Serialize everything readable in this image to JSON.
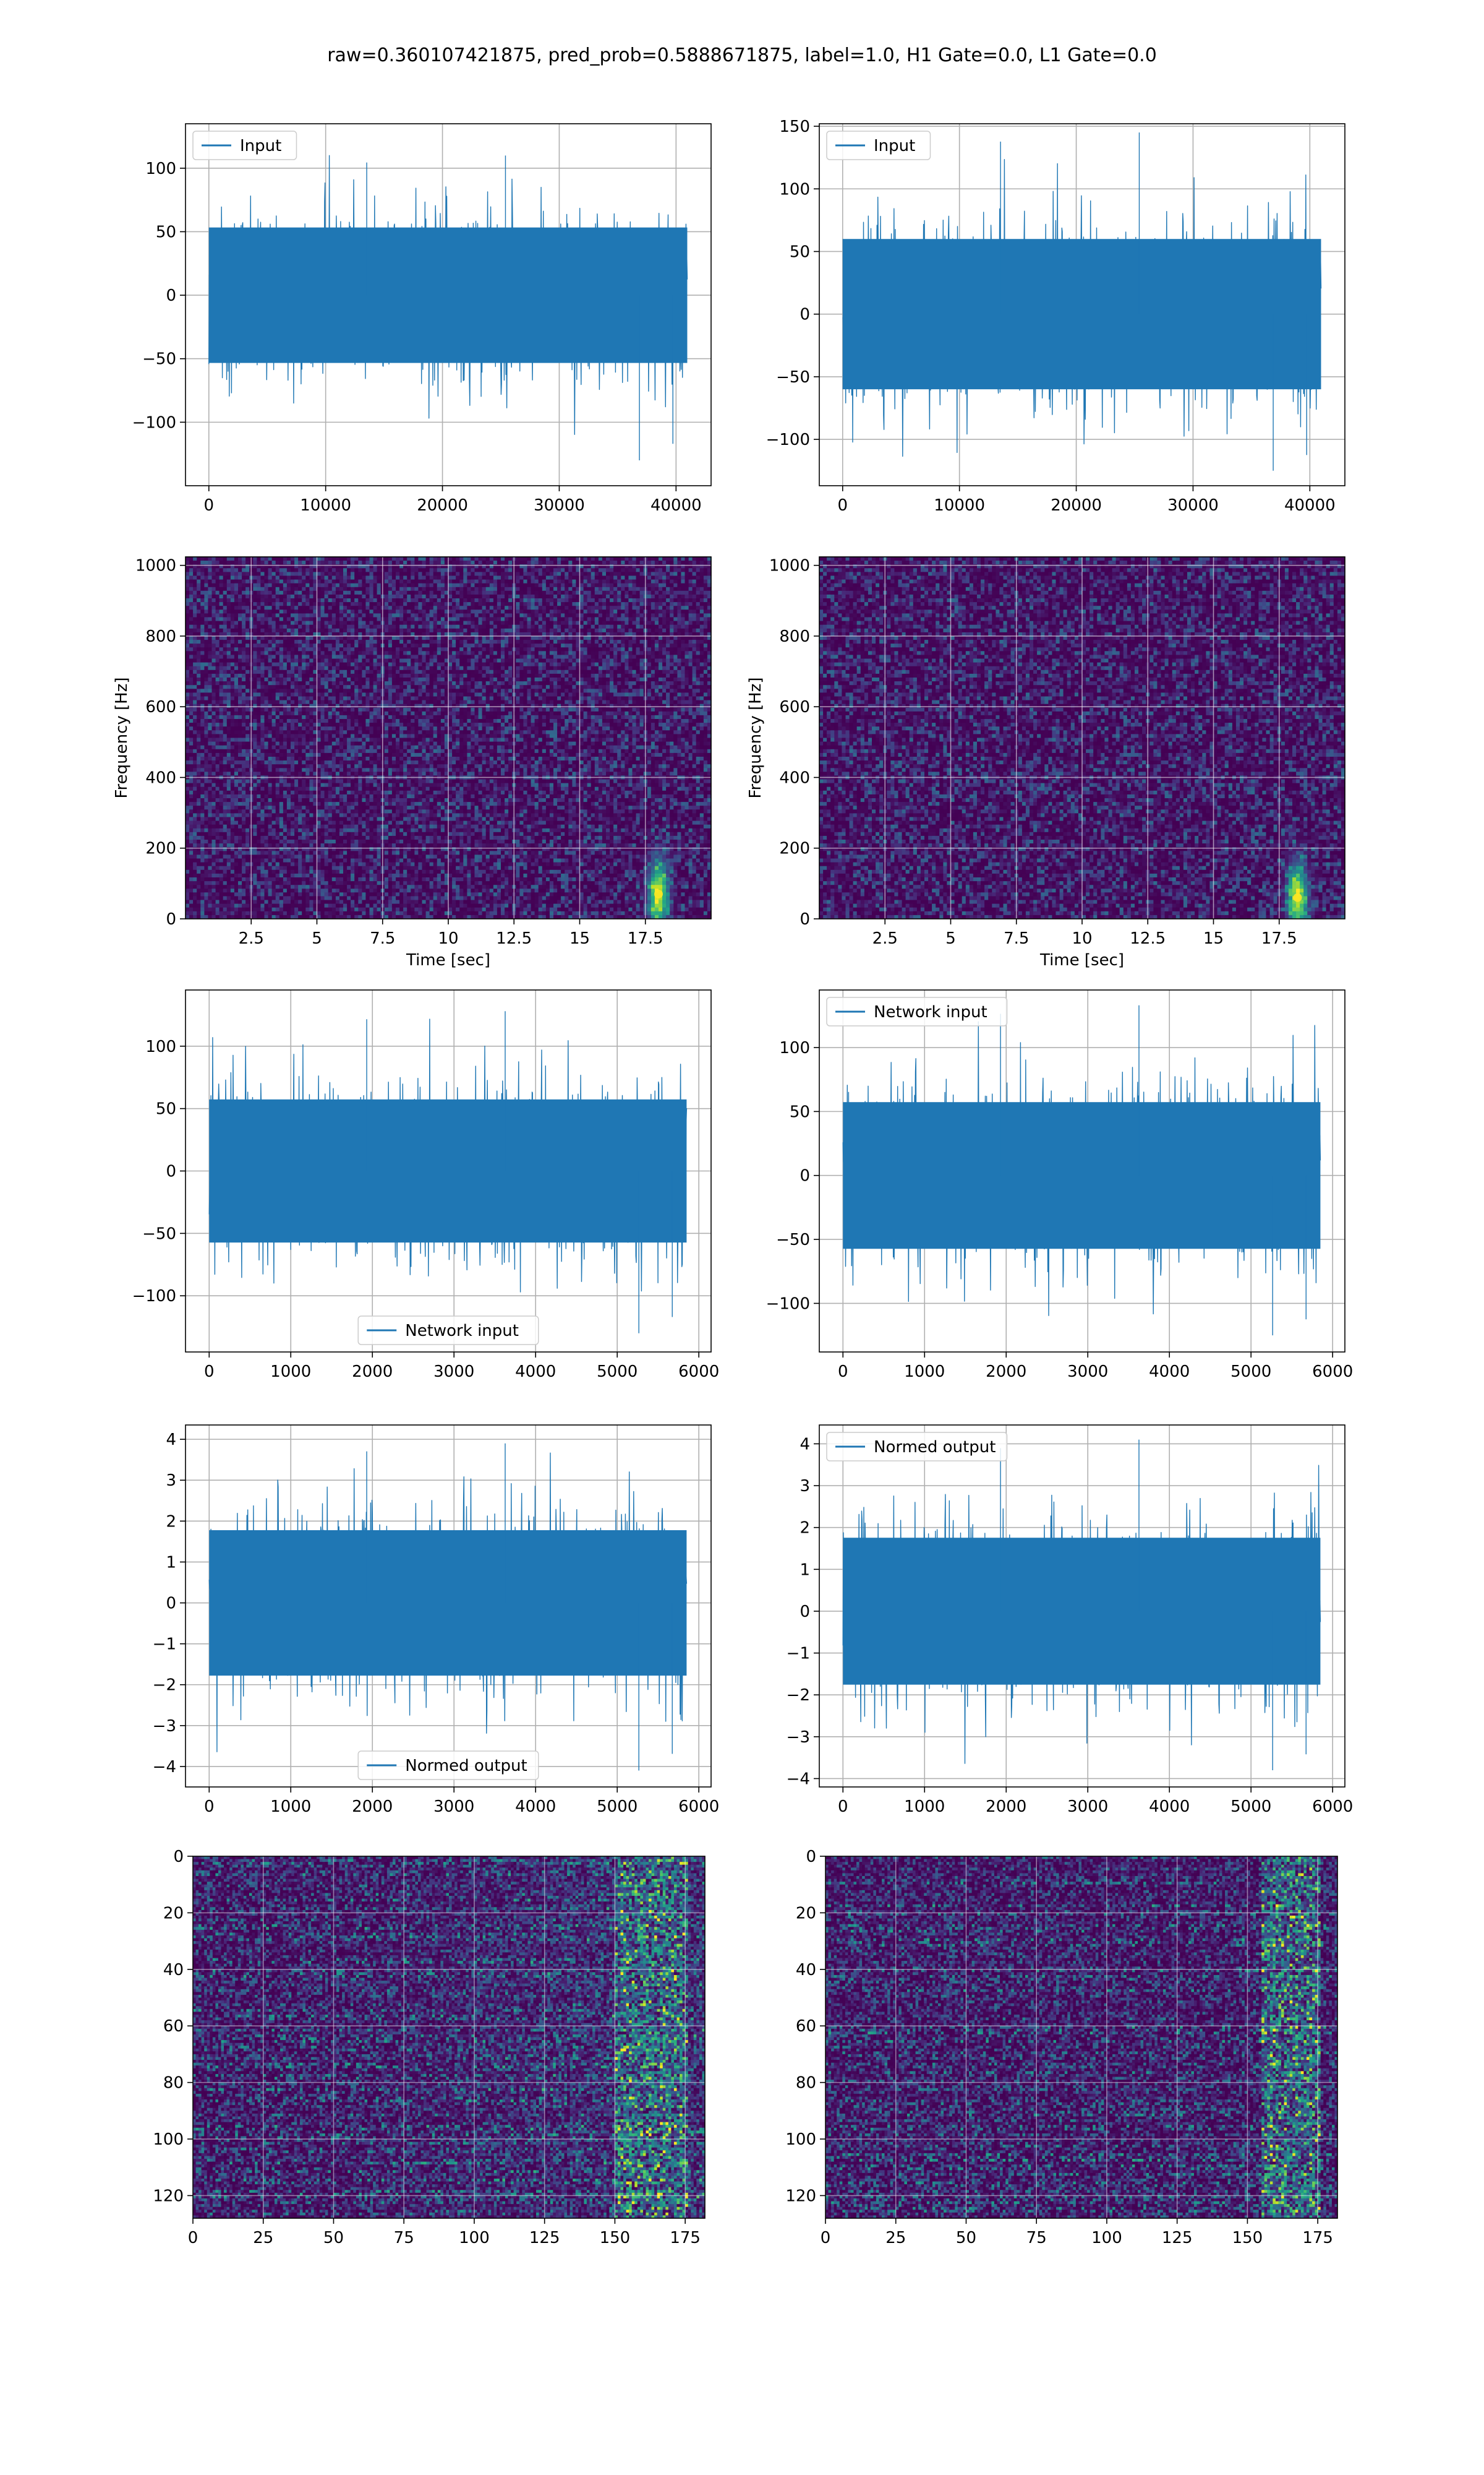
{
  "figure": {
    "title": "raw=0.360107421875, pred_prob=0.5888671875, label=1.0, H1 Gate=0.0, L1 Gate=0.0"
  },
  "colors": {
    "line": "#1f77b4",
    "viridis_low": "#440154",
    "viridis_high": "#fde725",
    "grid": "#b0b0b0"
  },
  "chart_data": [
    {
      "id": "input-h1",
      "type": "line",
      "title": "",
      "xlabel": "",
      "ylabel": "",
      "series": [
        {
          "name": "Input",
          "x_range": [
            0,
            40960
          ],
          "amplitude_envelope": [
            -130,
            110
          ]
        }
      ],
      "xlim": [
        -2000,
        43000
      ],
      "ylim": [
        -150,
        135
      ],
      "xticks": [
        0,
        10000,
        20000,
        30000,
        40000
      ],
      "yticks": [
        -100,
        -50,
        0,
        50,
        100
      ],
      "legend": "upper left",
      "grid": true
    },
    {
      "id": "input-l1",
      "type": "line",
      "title": "",
      "xlabel": "",
      "ylabel": "",
      "series": [
        {
          "name": "Input",
          "x_range": [
            0,
            40960
          ],
          "amplitude_envelope": [
            -125,
            145
          ]
        }
      ],
      "xlim": [
        -2000,
        43000
      ],
      "ylim": [
        -137,
        152
      ],
      "xticks": [
        0,
        10000,
        20000,
        30000,
        40000
      ],
      "yticks": [
        -100,
        -50,
        0,
        50,
        100,
        150
      ],
      "legend": "upper left",
      "grid": true
    },
    {
      "id": "spectrogram-h1",
      "type": "heatmap",
      "title": "",
      "xlabel": "Time [sec]",
      "ylabel": "Frequency [Hz]",
      "xlim": [
        0,
        20
      ],
      "ylim": [
        0,
        1024
      ],
      "xticks": [
        2.5,
        5.0,
        7.5,
        10.0,
        12.5,
        15.0,
        17.5
      ],
      "yticks": [
        0,
        200,
        400,
        600,
        800,
        1000
      ],
      "hotspot": {
        "x": 18.0,
        "y": 70
      },
      "colormap": "viridis",
      "grid": true
    },
    {
      "id": "spectrogram-l1",
      "type": "heatmap",
      "title": "",
      "xlabel": "Time [sec]",
      "ylabel": "Frequency [Hz]",
      "xlim": [
        0,
        20
      ],
      "ylim": [
        0,
        1024
      ],
      "xticks": [
        2.5,
        5.0,
        7.5,
        10.0,
        12.5,
        15.0,
        17.5
      ],
      "yticks": [
        0,
        200,
        400,
        600,
        800,
        1000
      ],
      "hotspot": {
        "x": 18.2,
        "y": 60
      },
      "colormap": "viridis",
      "grid": true
    },
    {
      "id": "network-input-h1",
      "type": "line",
      "title": "",
      "xlabel": "",
      "ylabel": "",
      "series": [
        {
          "name": "Network input",
          "x_range": [
            0,
            5850
          ],
          "amplitude_envelope": [
            -130,
            128
          ]
        }
      ],
      "xlim": [
        -290,
        6150
      ],
      "ylim": [
        -145,
        145
      ],
      "xticks": [
        0,
        1000,
        2000,
        3000,
        4000,
        5000,
        6000
      ],
      "yticks": [
        -100,
        -50,
        0,
        50,
        100
      ],
      "legend": "lower center",
      "grid": true
    },
    {
      "id": "network-input-l1",
      "type": "line",
      "title": "",
      "xlabel": "",
      "ylabel": "",
      "series": [
        {
          "name": "Network input",
          "x_range": [
            0,
            5850
          ],
          "amplitude_envelope": [
            -125,
            133
          ]
        }
      ],
      "xlim": [
        -290,
        6150
      ],
      "ylim": [
        -138,
        145
      ],
      "xticks": [
        0,
        1000,
        2000,
        3000,
        4000,
        5000,
        6000
      ],
      "yticks": [
        -100,
        -50,
        0,
        50,
        100
      ],
      "legend": "upper left",
      "grid": true
    },
    {
      "id": "normed-output-h1",
      "type": "line",
      "title": "",
      "xlabel": "",
      "ylabel": "",
      "series": [
        {
          "name": "Normed output",
          "x_range": [
            0,
            5850
          ],
          "amplitude_envelope": [
            -4.1,
            3.9
          ]
        }
      ],
      "xlim": [
        -290,
        6150
      ],
      "ylim": [
        -4.5,
        4.35
      ],
      "xticks": [
        0,
        1000,
        2000,
        3000,
        4000,
        5000,
        6000
      ],
      "yticks": [
        -4,
        -3,
        -2,
        -1,
        0,
        1,
        2,
        3,
        4
      ],
      "legend": "lower center",
      "grid": true
    },
    {
      "id": "normed-output-l1",
      "type": "line",
      "title": "",
      "xlabel": "",
      "ylabel": "",
      "series": [
        {
          "name": "Normed output",
          "x_range": [
            0,
            5850
          ],
          "amplitude_envelope": [
            -3.8,
            4.1
          ]
        }
      ],
      "xlim": [
        -290,
        6150
      ],
      "ylim": [
        -4.2,
        4.45
      ],
      "xticks": [
        0,
        1000,
        2000,
        3000,
        4000,
        5000,
        6000
      ],
      "yticks": [
        -4,
        -3,
        -2,
        -1,
        0,
        1,
        2,
        3,
        4
      ],
      "legend": "upper left",
      "grid": true
    },
    {
      "id": "qtransform-h1",
      "type": "heatmap",
      "title": "",
      "xlabel": "",
      "ylabel": "",
      "xlim": [
        0,
        182
      ],
      "ylim": [
        128,
        0
      ],
      "xticks": [
        0,
        25,
        50,
        75,
        100,
        125,
        150,
        175
      ],
      "yticks": [
        0,
        20,
        40,
        60,
        80,
        100,
        120
      ],
      "hot_band_x": [
        150,
        175
      ],
      "colormap": "viridis",
      "grid": true
    },
    {
      "id": "qtransform-l1",
      "type": "heatmap",
      "title": "",
      "xlabel": "",
      "ylabel": "",
      "xlim": [
        0,
        182
      ],
      "ylim": [
        128,
        0
      ],
      "xticks": [
        0,
        25,
        50,
        75,
        100,
        125,
        150,
        175
      ],
      "yticks": [
        0,
        20,
        40,
        60,
        80,
        100,
        120
      ],
      "hot_band_x": [
        155,
        175
      ],
      "colormap": "viridis",
      "grid": true
    }
  ]
}
